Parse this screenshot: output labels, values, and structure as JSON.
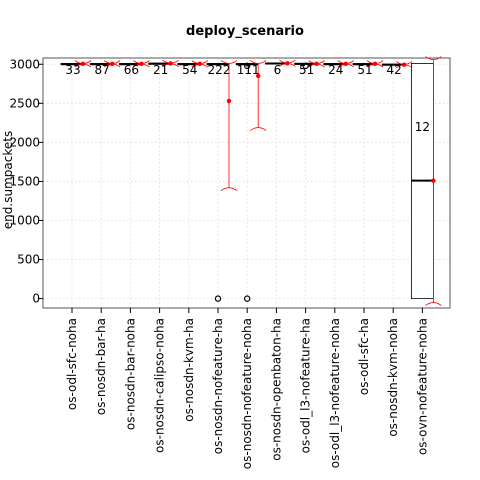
{
  "chart_data": {
    "type": "boxplot",
    "title": "deploy_scenario",
    "xlabel": "",
    "ylabel": "end.sumpackets",
    "ylim": [
      -120,
      3080
    ],
    "yticks": [
      0,
      500,
      1000,
      1500,
      2000,
      2500,
      3000
    ],
    "ytick_labels": [
      "0",
      "500",
      "1000",
      "1500",
      "2000",
      "2500",
      "3000"
    ],
    "grid": true,
    "categories": [
      "os-odl-sfc-noha",
      "os-nosdn-bar-ha",
      "os-nosdn-bar-noha",
      "os-nosdn-calipso-noha",
      "os-nosdn-kvm-ha",
      "os-nosdn-nofeature-ha",
      "os-nosdn-nofeature-noha",
      "os-nosdn-openbaton-ha",
      "os-odl_l3-nofeature-ha",
      "os-odl_l3-nofeature-noha",
      "os-odl-sfc-ha",
      "os-nosdn-kvm-noha",
      "os-ovn-nofeature-noha"
    ],
    "counts": [
      "33",
      "87",
      "66",
      "21",
      "54",
      "222",
      "111",
      "6",
      "51",
      "24",
      "51",
      "42",
      "12"
    ],
    "boxes": [
      {
        "q1": 3000,
        "median": 3000,
        "q3": 3010,
        "whisker_low": 3000,
        "whisker_high": 3010,
        "outliers": []
      },
      {
        "q1": 3000,
        "median": 3000,
        "q3": 3010,
        "whisker_low": 3000,
        "whisker_high": 3010,
        "outliers": []
      },
      {
        "q1": 3000,
        "median": 3000,
        "q3": 3010,
        "whisker_low": 3000,
        "whisker_high": 3010,
        "outliers": []
      },
      {
        "q1": 3005,
        "median": 3008,
        "q3": 3012,
        "whisker_low": 3005,
        "whisker_high": 3012,
        "outliers": []
      },
      {
        "q1": 3000,
        "median": 3000,
        "q3": 3010,
        "whisker_low": 3000,
        "whisker_high": 3010,
        "outliers": []
      },
      {
        "q1": 3000,
        "median": 3000,
        "q3": 3010,
        "whisker_low": 3000,
        "whisker_high": 3010,
        "outliers": [
          0
        ]
      },
      {
        "q1": 3000,
        "median": 3000,
        "q3": 3010,
        "whisker_low": 3000,
        "whisker_high": 3010,
        "outliers": [
          0,
          2980
        ]
      },
      {
        "q1": 3010,
        "median": 3010,
        "q3": 3015,
        "whisker_low": 3010,
        "whisker_high": 3015,
        "outliers": []
      },
      {
        "q1": 3000,
        "median": 3005,
        "q3": 3012,
        "whisker_low": 3000,
        "whisker_high": 3012,
        "outliers": [
          2980
        ]
      },
      {
        "q1": 3000,
        "median": 3000,
        "q3": 3010,
        "whisker_low": 3000,
        "whisker_high": 3010,
        "outliers": []
      },
      {
        "q1": 3000,
        "median": 3000,
        "q3": 3010,
        "whisker_low": 3000,
        "whisker_high": 3010,
        "outliers": []
      },
      {
        "q1": 2990,
        "median": 2995,
        "q3": 3000,
        "whisker_low": 2990,
        "whisker_high": 3000,
        "outliers": []
      },
      {
        "q1": 0,
        "median": 1510,
        "q3": 3010,
        "whisker_low": 0,
        "whisker_high": 3010,
        "outliers": []
      }
    ],
    "means": [
      {
        "mean": 3005,
        "ci_low": 3002,
        "ci_high": 3008
      },
      {
        "mean": 3005,
        "ci_low": 3002,
        "ci_high": 3008
      },
      {
        "mean": 3005,
        "ci_low": 3002,
        "ci_high": 3008
      },
      {
        "mean": 3010,
        "ci_low": 3007,
        "ci_high": 3013
      },
      {
        "mean": 3005,
        "ci_low": 3002,
        "ci_high": 3008
      },
      {
        "mean": 2530,
        "ci_low": 1420,
        "ci_high": 3010
      },
      {
        "mean": 2850,
        "ci_low": 2190,
        "ci_high": 3010
      },
      {
        "mean": 3012,
        "ci_low": 3010,
        "ci_high": 3015
      },
      {
        "mean": 3005,
        "ci_low": 3002,
        "ci_high": 3008
      },
      {
        "mean": 3005,
        "ci_low": 3002,
        "ci_high": 3008
      },
      {
        "mean": 3005,
        "ci_low": 3002,
        "ci_high": 3008
      },
      {
        "mean": 2995,
        "ci_low": 2992,
        "ci_high": 2998
      },
      {
        "mean": 1510,
        "ci_low": -50,
        "ci_high": 3060
      }
    ],
    "colors": {
      "box": "#000000",
      "mean": "#ff0000",
      "grid": "#d9d9d9"
    }
  }
}
